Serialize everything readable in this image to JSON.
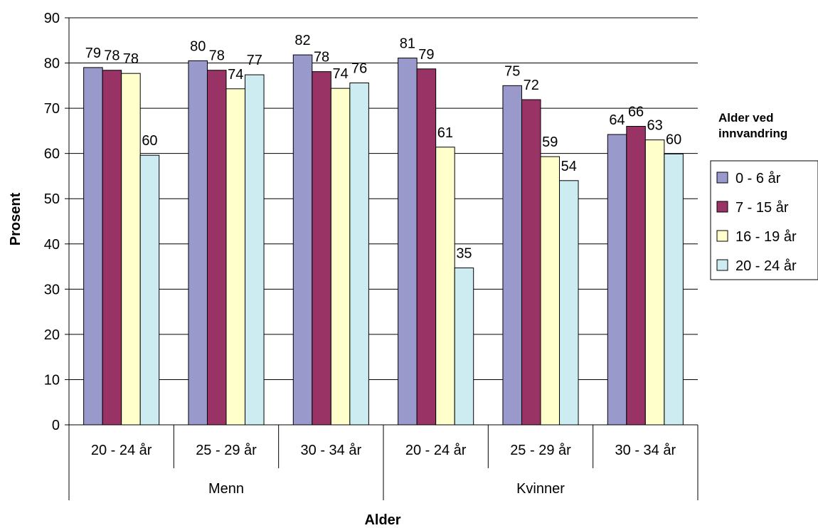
{
  "chart_data": {
    "type": "bar",
    "xlabel": "Alder",
    "ylabel": "Prosent",
    "ylim": [
      0,
      90
    ],
    "ytick_step": 10,
    "grid": "horizontal",
    "legend_placement": "right",
    "legend_title": [
      "Alder ved",
      "innvandring"
    ],
    "groups": [
      {
        "name": "Menn",
        "categories": [
          "20 - 24 år",
          "25 - 29 år",
          "30 - 34 år"
        ]
      },
      {
        "name": "Kvinner",
        "categories": [
          "20 - 24 år",
          "25 - 29 år",
          "30 - 34 år"
        ]
      }
    ],
    "series": [
      {
        "name": "0 - 6 år",
        "color": "#9999cc",
        "values": [
          79,
          80.5,
          81.8,
          81.1,
          75,
          64.2
        ],
        "labels": [
          "79",
          "80",
          "82",
          "81",
          "75",
          "64"
        ]
      },
      {
        "name": "7 - 15 år",
        "color": "#993366",
        "values": [
          78.4,
          78.4,
          78.1,
          78.7,
          71.9,
          66
        ],
        "labels": [
          "78",
          "78",
          "78",
          "79",
          "72",
          "66"
        ]
      },
      {
        "name": "16 - 19 år",
        "color": "#ffffcc",
        "values": [
          77.7,
          74.3,
          74.4,
          61.4,
          59.3,
          63
        ],
        "labels": [
          "78",
          "74",
          "74",
          "61",
          "59",
          "63"
        ]
      },
      {
        "name": "20 - 24 år",
        "color": "#ccecf2",
        "values": [
          59.6,
          77.4,
          75.6,
          34.7,
          54,
          59.9
        ],
        "labels": [
          "60",
          "77",
          "76",
          "35",
          "54",
          "60"
        ]
      }
    ]
  }
}
